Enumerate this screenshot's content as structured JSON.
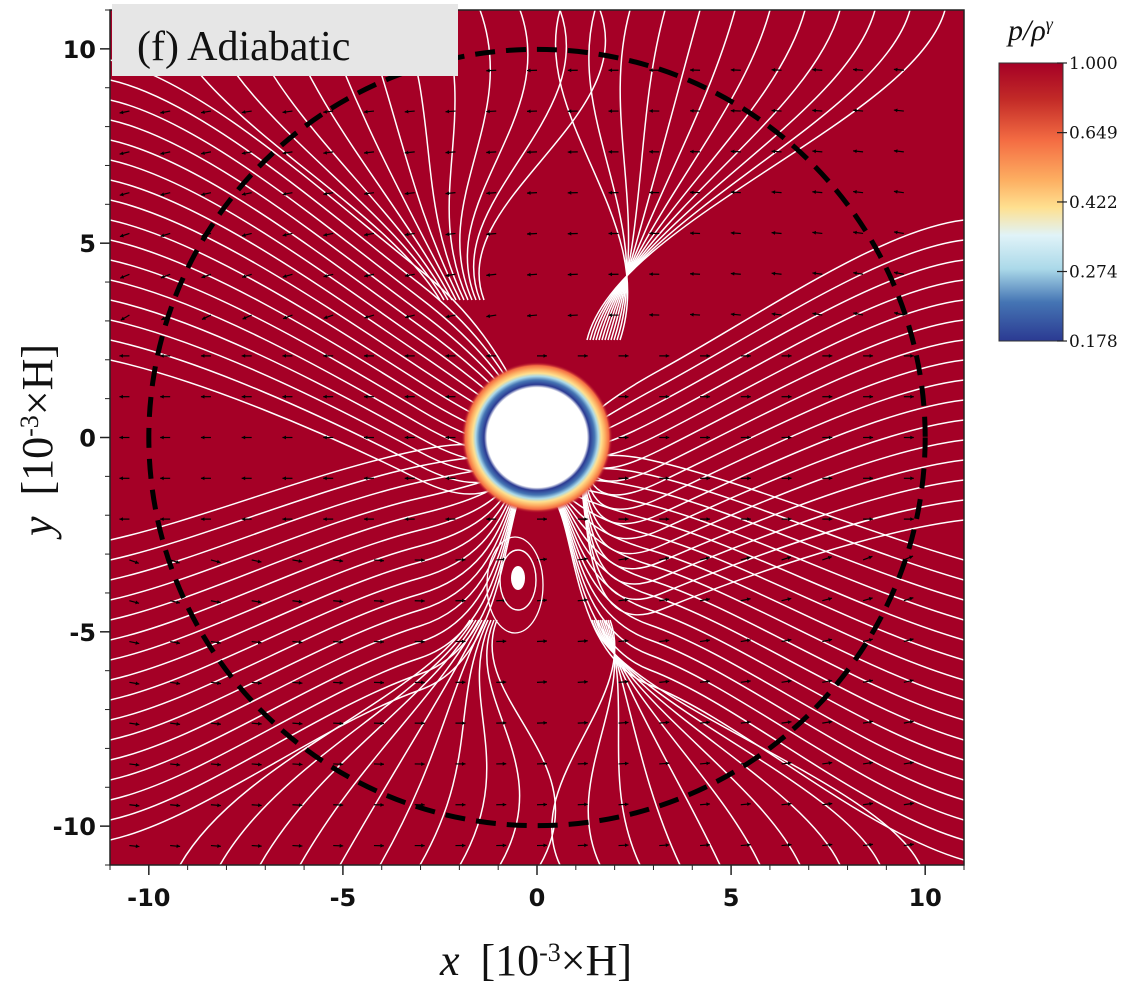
{
  "chart_data": {
    "type": "heatmap",
    "panel_label": "(f) Adiabatic",
    "field_label": "p/ρ",
    "field_label_superscript": "γ",
    "xlabel": {
      "var": "x",
      "unit_open": "[10",
      "unit_exp": "-3",
      "unit_close": "×H]"
    },
    "ylabel": {
      "var": "y",
      "unit_open": "[10",
      "unit_exp": "-3",
      "unit_close": "×H]"
    },
    "xlim": [
      -11,
      11
    ],
    "ylim": [
      -11,
      11
    ],
    "xticks": [
      -10,
      -5,
      0,
      5,
      10
    ],
    "yticks": [
      10,
      5,
      0,
      -5,
      -10
    ],
    "xtick_labels": [
      "-10",
      "-5",
      "0",
      "5",
      "10"
    ],
    "ytick_labels": [
      "10",
      "5",
      "0",
      "-5",
      "-10"
    ],
    "colorbar": {
      "ticks": [
        1.0,
        0.649,
        0.422,
        0.274,
        0.178
      ],
      "tick_labels": [
        "1.000",
        "0.649",
        "0.422",
        "0.274",
        "0.178"
      ],
      "colormap": "RdYlBu_r (reversed)"
    },
    "background_value": 1.0,
    "body_radius": 1.0,
    "boundary_circle_radius": 10.0,
    "colors": {
      "field": "#a50026",
      "stream": "#ffffff",
      "arrow": "#000000",
      "boundary": "#000000"
    }
  }
}
